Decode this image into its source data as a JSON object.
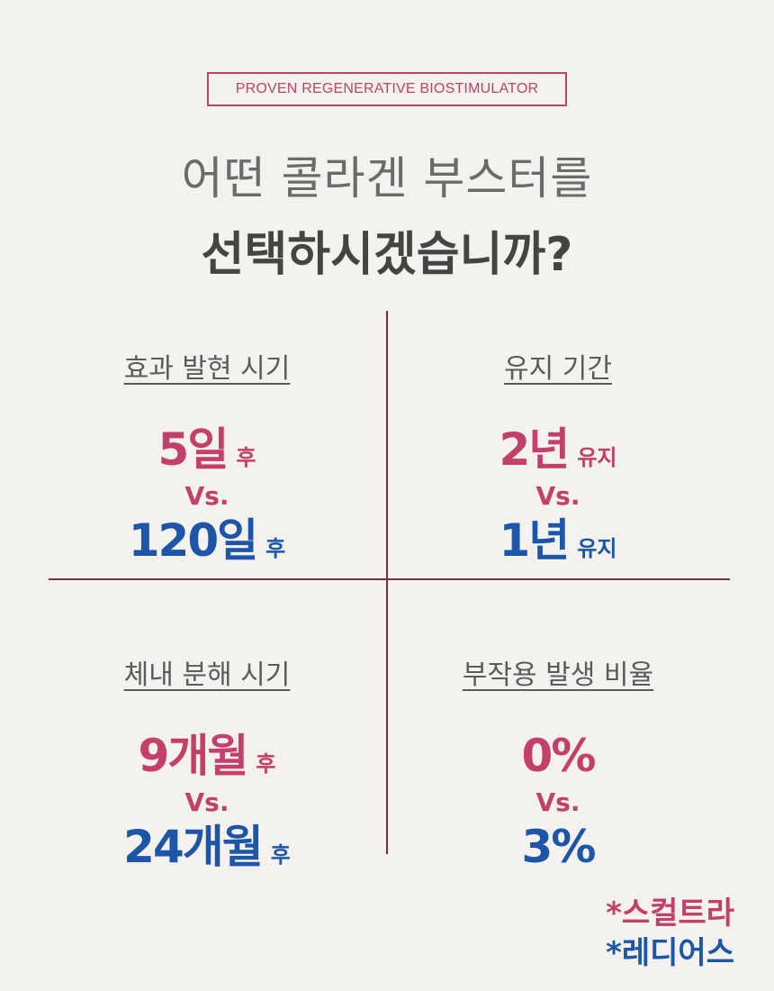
{
  "tag": "PROVEN REGENERATIVE BIOSTIMULATOR",
  "headline": {
    "line1": "어떤 콜라겐 부스터를",
    "line2": "선택하시겠습니까?"
  },
  "quadrants": [
    {
      "title": "효과 발현 시기",
      "first": {
        "value": "5일",
        "suffix": "후"
      },
      "vs": "Vs.",
      "second": {
        "value": "120일",
        "suffix": "후"
      }
    },
    {
      "title": "유지 기간",
      "first": {
        "value": "2년",
        "suffix": "유지"
      },
      "vs": "Vs.",
      "second": {
        "value": "1년",
        "suffix": "유지"
      }
    },
    {
      "title": "체내 분해 시기",
      "first": {
        "value": "9개월",
        "suffix": "후"
      },
      "vs": "Vs.",
      "second": {
        "value": "24개월",
        "suffix": "후"
      }
    },
    {
      "title": "부작용 발생 비율",
      "first": {
        "value": "0%",
        "suffix": ""
      },
      "vs": "Vs.",
      "second": {
        "value": "3%",
        "suffix": ""
      }
    }
  ],
  "legend": [
    {
      "label": "*스컬트라",
      "color": "#c4406a"
    },
    {
      "label": "*레디어스",
      "color": "#1d56a8"
    }
  ],
  "colors": {
    "pink": "#c4406a",
    "blue": "#1d56a8",
    "divider": "#7a2d45",
    "background": "#f4f2ee"
  }
}
